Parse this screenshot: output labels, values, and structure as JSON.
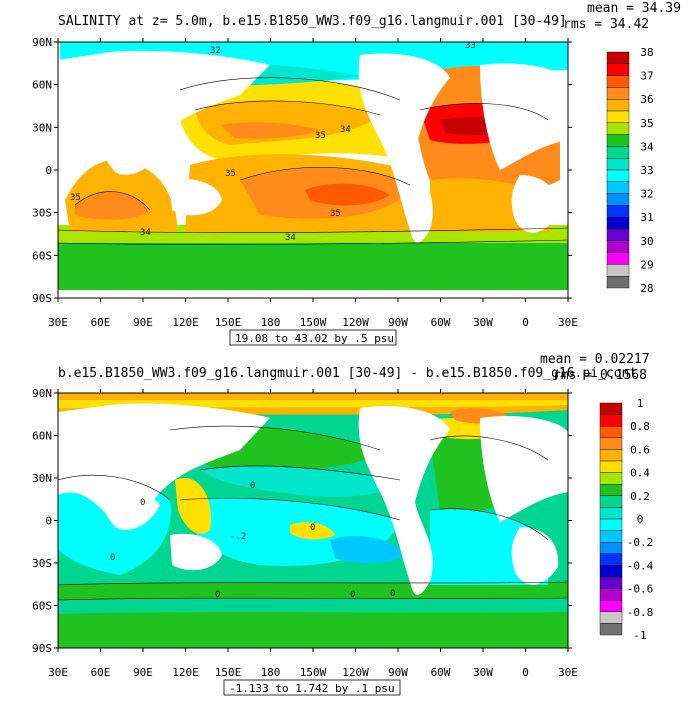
{
  "top": {
    "title": "SALINITY at z=    5.0m, b.e15.B1850_WW3.f09_g16.langmuir.001 [30-49]",
    "mean": "mean = 34.39",
    "rms": "rms = 34.42",
    "range": "19.08 to 43.02 by .5 psu",
    "colorbar_labels": [
      "38",
      "37",
      "36",
      "35",
      "34",
      "33",
      "32",
      "31",
      "30",
      "29",
      "28"
    ],
    "colorbar_colors": [
      "#c40000",
      "#ff0000",
      "#ff5a00",
      "#ff8c1a",
      "#ffb300",
      "#ffe000",
      "#a8e600",
      "#1fc21f",
      "#00d68f",
      "#00e6cc",
      "#00ffff",
      "#00c8ff",
      "#0090ff",
      "#0033ff",
      "#0000cc",
      "#6600cc",
      "#b000d0",
      "#ff00ff",
      "#c8c8c8",
      "#707070"
    ],
    "contour_labels": [
      "32",
      "33",
      "34",
      "35",
      "35",
      "35",
      "35",
      "34",
      "34"
    ]
  },
  "bottom": {
    "title": "b.e15.B1850_WW3.f09_g16.langmuir.001 [30-49] - b.e15.B1850.f09_g16.pi_cont",
    "mean": "mean = 0.02217",
    "rms": "rms = 0.1568",
    "range": "-1.133 to 1.742 by .1 psu",
    "colorbar_labels": [
      "1",
      "0.8",
      "0.6",
      "0.4",
      "0.2",
      "0",
      "-0.2",
      "-0.4",
      "-0.6",
      "-0.8",
      "-1"
    ],
    "colorbar_colors": [
      "#c40000",
      "#ff0000",
      "#ff5a00",
      "#ff8c1a",
      "#ffb300",
      "#ffe000",
      "#a8e600",
      "#1fc21f",
      "#00d68f",
      "#00e6cc",
      "#00ffff",
      "#00c8ff",
      "#0090ff",
      "#0033ff",
      "#0000cc",
      "#6600cc",
      "#b000d0",
      "#ff00ff",
      "#c8c8c8",
      "#707070"
    ],
    "contour_labels": [
      "0",
      "0",
      "0",
      "0",
      "0",
      "-.2",
      "0",
      "0"
    ]
  },
  "axes": {
    "lat_labels": [
      "90N",
      "60N",
      "30N",
      "0",
      "30S",
      "60S",
      "90S"
    ],
    "lon_labels": [
      "30E",
      "60E",
      "90E",
      "120E",
      "150E",
      "180",
      "150W",
      "120W",
      "90W",
      "60W",
      "30W",
      "0",
      "30E"
    ]
  }
}
